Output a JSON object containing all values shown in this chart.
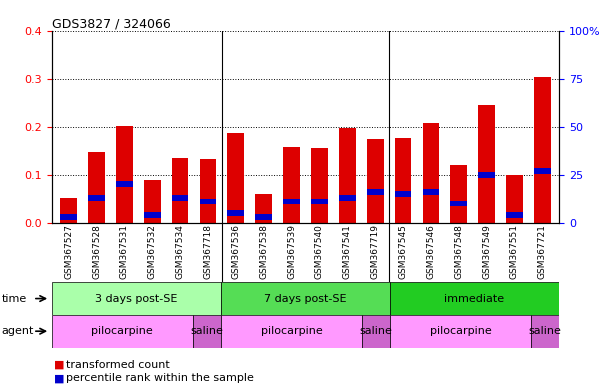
{
  "title": "GDS3827 / 324066",
  "samples": [
    "GSM367527",
    "GSM367528",
    "GSM367531",
    "GSM367532",
    "GSM367534",
    "GSM367718",
    "GSM367536",
    "GSM367538",
    "GSM367539",
    "GSM367540",
    "GSM367541",
    "GSM367719",
    "GSM367545",
    "GSM367546",
    "GSM367548",
    "GSM367549",
    "GSM367551",
    "GSM367721"
  ],
  "red_values": [
    0.052,
    0.148,
    0.202,
    0.09,
    0.135,
    0.133,
    0.186,
    0.06,
    0.158,
    0.155,
    0.197,
    0.175,
    0.176,
    0.207,
    0.12,
    0.246,
    0.1,
    0.303
  ],
  "blue_pct": [
    3,
    13,
    20,
    4,
    13,
    11,
    5,
    3,
    11,
    11,
    13,
    16,
    15,
    16,
    10,
    25,
    4,
    27
  ],
  "ylim_left": [
    0,
    0.4
  ],
  "ylim_right": [
    0,
    100
  ],
  "yticks_left": [
    0,
    0.1,
    0.2,
    0.3,
    0.4
  ],
  "yticks_right": [
    0,
    25,
    50,
    75,
    100
  ],
  "time_groups": [
    {
      "label": "3 days post-SE",
      "start": 0,
      "end": 6,
      "color": "#AAFFAA"
    },
    {
      "label": "7 days post-SE",
      "start": 6,
      "end": 12,
      "color": "#55DD55"
    },
    {
      "label": "immediate",
      "start": 12,
      "end": 18,
      "color": "#22CC22"
    }
  ],
  "agent_groups": [
    {
      "label": "pilocarpine",
      "start": 0,
      "end": 5,
      "color": "#FF99FF"
    },
    {
      "label": "saline",
      "start": 5,
      "end": 6,
      "color": "#CC66CC"
    },
    {
      "label": "pilocarpine",
      "start": 6,
      "end": 11,
      "color": "#FF99FF"
    },
    {
      "label": "saline",
      "start": 11,
      "end": 12,
      "color": "#CC66CC"
    },
    {
      "label": "pilocarpine",
      "start": 12,
      "end": 17,
      "color": "#FF99FF"
    },
    {
      "label": "saline",
      "start": 17,
      "end": 18,
      "color": "#CC66CC"
    }
  ],
  "bar_color_red": "#DD0000",
  "bar_color_blue": "#0000CC",
  "bar_width": 0.6,
  "bg_color": "#FFFFFF",
  "legend_red": "transformed count",
  "legend_blue": "percentile rank within the sample",
  "time_label": "time",
  "agent_label": "agent",
  "group_boundaries": [
    6,
    12
  ]
}
